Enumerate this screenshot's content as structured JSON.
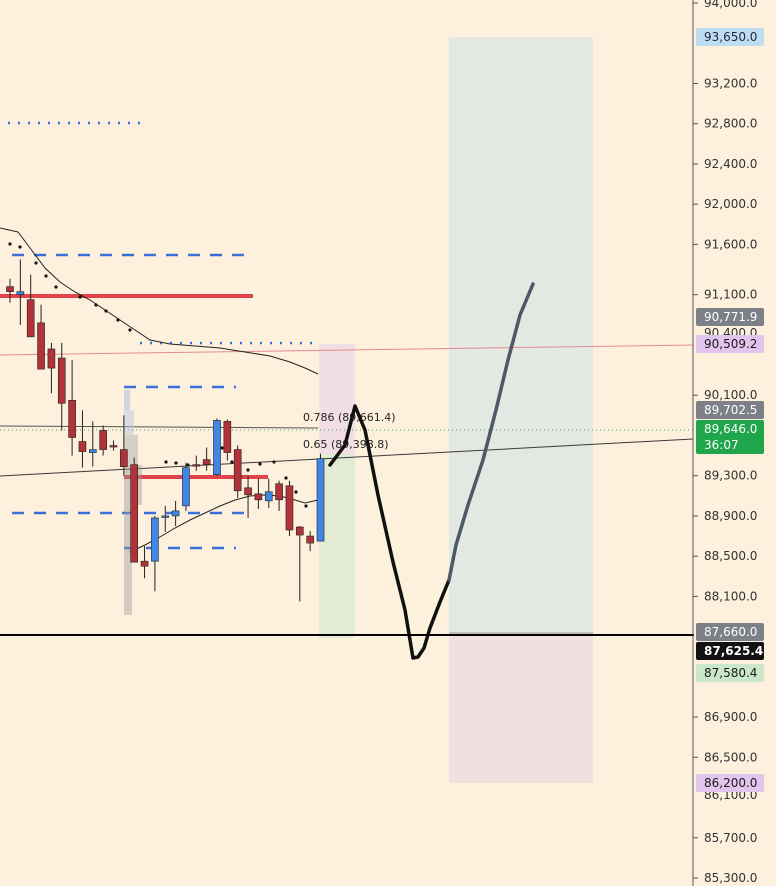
{
  "chart_data": {
    "type": "candlestick",
    "title": "",
    "ylim": [
      85100,
      94000
    ],
    "y_ticks": [
      "94,000.0",
      "93,200.0",
      "92,800.0",
      "92,400.0",
      "92,000.0",
      "91,600.0",
      "91,100.0",
      "90,100.0",
      "89,300.0",
      "88,900.0",
      "88,500.0",
      "88,100.0",
      "86,900.0",
      "86,500.0",
      "85,700.0",
      "85,300.0"
    ],
    "y_tick_values": [
      94000,
      93200,
      92800,
      92400,
      92000,
      91600,
      91100,
      90100,
      89300,
      88900,
      88500,
      88100,
      86900,
      86500,
      85700,
      85300
    ],
    "grid": false,
    "candles": [
      {
        "o": 91180,
        "h": 91260,
        "l": 91020,
        "c": 91130
      },
      {
        "o": 91100,
        "h": 91450,
        "l": 90800,
        "c": 91130
      },
      {
        "o": 91050,
        "h": 91300,
        "l": 90750,
        "c": 90680
      },
      {
        "o": 90820,
        "h": 91000,
        "l": 90400,
        "c": 90360
      },
      {
        "o": 90560,
        "h": 90620,
        "l": 90120,
        "c": 90370
      },
      {
        "o": 90470,
        "h": 90620,
        "l": 89750,
        "c": 90020
      },
      {
        "o": 90050,
        "h": 90450,
        "l": 89500,
        "c": 89680
      },
      {
        "o": 89640,
        "h": 89950,
        "l": 89380,
        "c": 89540
      },
      {
        "o": 89530,
        "h": 89840,
        "l": 89390,
        "c": 89560
      },
      {
        "o": 89750,
        "h": 89800,
        "l": 89500,
        "c": 89560
      },
      {
        "o": 89600,
        "h": 89650,
        "l": 89550,
        "c": 89590
      },
      {
        "o": 89560,
        "h": 89900,
        "l": 89300,
        "c": 89390
      },
      {
        "o": 89410,
        "h": 89480,
        "l": 88450,
        "c": 88440
      },
      {
        "o": 88450,
        "h": 88600,
        "l": 88280,
        "c": 88400
      },
      {
        "o": 88450,
        "h": 88900,
        "l": 88150,
        "c": 88880
      },
      {
        "o": 88890,
        "h": 89000,
        "l": 88740,
        "c": 88900
      },
      {
        "o": 88900,
        "h": 89050,
        "l": 88800,
        "c": 88950
      },
      {
        "o": 89000,
        "h": 89430,
        "l": 88950,
        "c": 89380
      },
      {
        "o": 89410,
        "h": 89500,
        "l": 89350,
        "c": 89400
      },
      {
        "o": 89460,
        "h": 89580,
        "l": 89350,
        "c": 89410
      },
      {
        "o": 89310,
        "h": 89870,
        "l": 89300,
        "c": 89850
      },
      {
        "o": 89840,
        "h": 89860,
        "l": 89450,
        "c": 89530
      },
      {
        "o": 89560,
        "h": 89600,
        "l": 89080,
        "c": 89150
      },
      {
        "o": 89180,
        "h": 89300,
        "l": 88880,
        "c": 89110
      },
      {
        "o": 89120,
        "h": 89270,
        "l": 88970,
        "c": 89060
      },
      {
        "o": 89050,
        "h": 89270,
        "l": 88980,
        "c": 89140
      },
      {
        "o": 89220,
        "h": 89250,
        "l": 88950,
        "c": 89060
      },
      {
        "o": 89200,
        "h": 89250,
        "l": 88700,
        "c": 88760
      },
      {
        "o": 88790,
        "h": 88800,
        "l": 88050,
        "c": 88710
      },
      {
        "o": 88700,
        "h": 88750,
        "l": 88550,
        "c": 88630
      },
      {
        "o": 88650,
        "h": 89520,
        "l": 88650,
        "c": 89470
      }
    ],
    "horizontal_levels": [
      {
        "price": 87625.4,
        "color": "#000000",
        "style": "solid"
      },
      {
        "price": 90875,
        "color": "#e0434a",
        "style": "solid"
      },
      {
        "price": 89100,
        "color": "#e0434a",
        "style": "solid"
      }
    ],
    "fib_labels": [
      "0.786 (89,661.4)",
      "0.65 (89,398.8)"
    ],
    "price_badges": [
      {
        "text": "93,650.0",
        "bg": "#bfdcf3",
        "fg": "#1b2a3a"
      },
      {
        "text": "90,771.9",
        "bg": "#7d8087",
        "fg": "#ffffff"
      },
      {
        "text": "90,509.2",
        "bg": "#e2c5ec",
        "fg": "#1b1b1b"
      },
      {
        "text": "89,702.5",
        "bg": "#7d8087",
        "fg": "#ffffff"
      },
      {
        "text": "89,646.0",
        "bg": "#1fa64a",
        "fg": "#ffffff"
      },
      {
        "text": "36:07",
        "bg": "#1fa64a",
        "fg": "#ffffff"
      },
      {
        "text": "87,660.0",
        "bg": "#7d8087",
        "fg": "#ffffff"
      },
      {
        "text": "87,625.4",
        "bg": "#111111",
        "fg": "#ffffff"
      },
      {
        "text": "87,580.4",
        "bg": "#cbe7c9",
        "fg": "#1b1b1b"
      },
      {
        "text": "86,200.0",
        "bg": "#e2c5ec",
        "fg": "#1b1b1b"
      }
    ],
    "partial_tick_labels": [
      "90,400.0",
      "86,100.0"
    ],
    "colors": {
      "up": "#3f86e6",
      "down": "#b2323a",
      "background": "#fdf1dd",
      "target_zone": "#e3e8e3",
      "stop_zone": "#f2dfe0"
    }
  }
}
